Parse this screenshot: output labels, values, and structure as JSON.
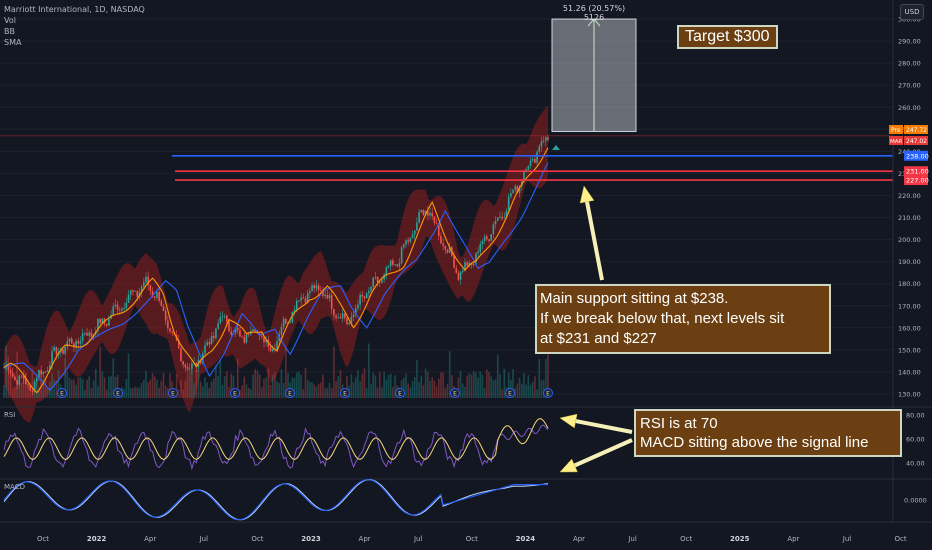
{
  "legend": {
    "symbol": "Marriott International, 1D, NASDAQ",
    "indicators": [
      "Vol",
      "BB",
      "SMA"
    ]
  },
  "currency_button": "USD",
  "measure": {
    "label": "51.26 (20.57%) 5126",
    "start_price": 249,
    "end_price": 300
  },
  "price_axis": {
    "ticks": [
      "300.00",
      "290.00",
      "280.00",
      "270.00",
      "260.00",
      "250.00",
      "240.00",
      "230.00",
      "220.00",
      "210.00",
      "200.00",
      "190.00",
      "180.00",
      "170.00",
      "160.00",
      "150.00",
      "140.00",
      "130.00"
    ],
    "min": 125,
    "max": 305
  },
  "price_badges": [
    {
      "text": "Pre",
      "sub": "247.72",
      "color": "#f57c00"
    },
    {
      "text": "MAR",
      "sub": "247.02",
      "color": "#e53935"
    },
    {
      "text": "238.00",
      "color": "#2962ff",
      "value": 238
    },
    {
      "text": "231.00",
      "color": "#f23645",
      "value": 231
    },
    {
      "text": "227.00",
      "color": "#f23645",
      "value": 227
    }
  ],
  "levels": [
    {
      "value": 238,
      "color": "#2962ff"
    },
    {
      "value": 231,
      "color": "#f23645"
    },
    {
      "value": 227,
      "color": "#f23645"
    }
  ],
  "time_axis": [
    "Oct",
    "2022",
    "Apr",
    "Jul",
    "Oct",
    "2023",
    "Apr",
    "Jul",
    "Oct",
    "2024",
    "Apr",
    "Jul",
    "Oct",
    "2025",
    "Apr",
    "Jul",
    "Oct"
  ],
  "rsi_pane": {
    "label": "RSI",
    "ticks": [
      "80.00",
      "60.00",
      "40.00"
    ]
  },
  "macd_pane": {
    "label": "MACD",
    "ticks": [
      "0.0000"
    ]
  },
  "annotations": {
    "target": "Target $300",
    "support": [
      "Main support sitting at $238.",
      "If we break below that, next levels sit",
      "at $231 and $227"
    ],
    "rsi": [
      "RSI is at 70",
      "MACD sitting above the signal line"
    ]
  },
  "colors": {
    "background": "#131722",
    "candle_up": "#26a69a",
    "candle_down": "#ef5350",
    "bb_fill": "#8e1e1e",
    "sma": "#2962ff",
    "ema": "#ff9800",
    "rsi": "#7e57c2",
    "macd": "#2962ff",
    "signal": "#ff9800",
    "arrow": "#ffee8a"
  }
}
